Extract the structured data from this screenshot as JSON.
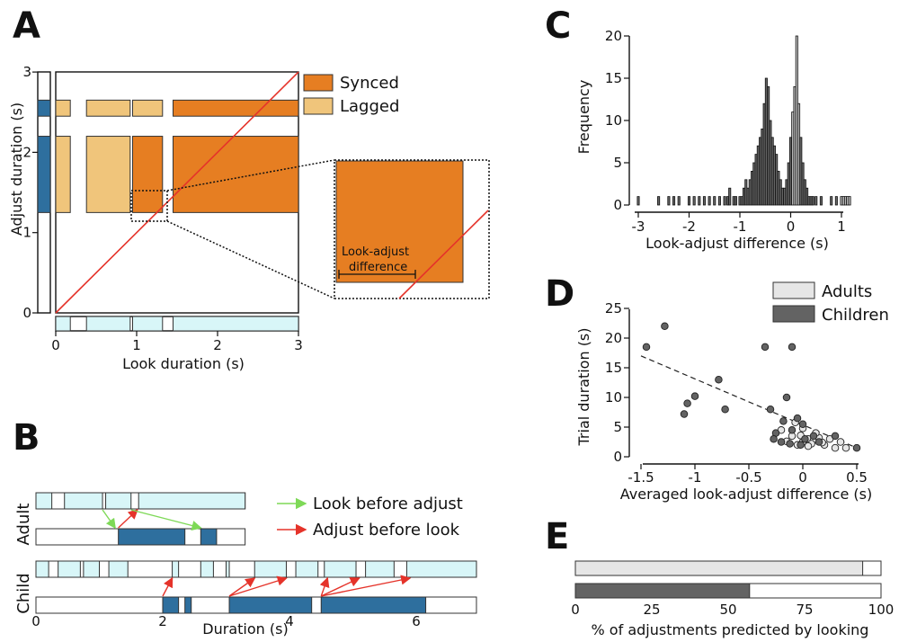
{
  "colors": {
    "synced": "#E67E22",
    "lagged": "#F0C57B",
    "look": "#D8F6F8",
    "adjust": "#2E6F9E",
    "diag": "#E5332A",
    "look_before_adjust": "#7ED957",
    "adjust_before_look": "#E5332A",
    "adults": "#E6E6E6",
    "children": "#636363"
  },
  "panels": {
    "A": {
      "label": "A"
    },
    "B": {
      "label": "B"
    },
    "C": {
      "label": "C"
    },
    "D": {
      "label": "D"
    },
    "E": {
      "label": "E"
    }
  },
  "chart_data": [
    {
      "id": "A",
      "type": "scatter",
      "xlabel": "Look duration (s)",
      "ylabel": "Adjust duration (s)",
      "xlim": [
        0,
        3
      ],
      "ylim": [
        0,
        3
      ],
      "xticks": [
        "0",
        "1",
        "2",
        "3"
      ],
      "yticks": [
        "0",
        "1",
        "2",
        "3"
      ],
      "legend": [
        {
          "key": "synced",
          "label": "Synced"
        },
        {
          "key": "lagged",
          "label": "Lagged"
        }
      ],
      "look_segments": [
        [
          0,
          0.18
        ],
        [
          0.38,
          0.92
        ],
        [
          0.95,
          1.32
        ],
        [
          1.45,
          3.0
        ]
      ],
      "adjust_segments": [
        [
          2.45,
          2.65
        ],
        [
          1.25,
          2.2
        ]
      ],
      "rectangles": [
        {
          "x": [
            0,
            0.18
          ],
          "y": [
            2.45,
            2.65
          ],
          "type": "lagged"
        },
        {
          "x": [
            0.38,
            0.92
          ],
          "y": [
            2.45,
            2.65
          ],
          "type": "lagged"
        },
        {
          "x": [
            0.95,
            1.32
          ],
          "y": [
            2.45,
            2.65
          ],
          "type": "lagged"
        },
        {
          "x": [
            1.45,
            3.0
          ],
          "y": [
            2.45,
            2.65
          ],
          "type": "synced"
        },
        {
          "x": [
            0,
            0.18
          ],
          "y": [
            1.25,
            2.2
          ],
          "type": "lagged"
        },
        {
          "x": [
            0.38,
            0.92
          ],
          "y": [
            1.25,
            2.2
          ],
          "type": "lagged"
        },
        {
          "x": [
            0.95,
            1.32
          ],
          "y": [
            1.25,
            2.2
          ],
          "type": "synced"
        },
        {
          "x": [
            1.45,
            3.0
          ],
          "y": [
            1.25,
            2.2
          ],
          "type": "synced"
        }
      ],
      "zoom_annotation": "Look-adjust difference"
    },
    {
      "id": "B",
      "type": "bar",
      "xlabel": "Duration (s)",
      "xlim": [
        0,
        7
      ],
      "xticks": [
        "0",
        "2",
        "4",
        "6"
      ],
      "row_labels": [
        "Adult",
        "Child"
      ],
      "legend": [
        {
          "key": "look_before_adjust",
          "label": "Look before adjust"
        },
        {
          "key": "adjust_before_look",
          "label": "Adjust before look"
        }
      ],
      "adult": {
        "end": 3.3,
        "look_segments": [
          [
            0.0,
            0.25
          ],
          [
            0.45,
            1.05
          ],
          [
            1.1,
            1.5
          ],
          [
            1.62,
            3.3
          ]
        ],
        "adjust_segments": [
          [
            1.3,
            2.35
          ],
          [
            2.6,
            2.85
          ]
        ],
        "arrows": [
          {
            "type": "look_before_adjust",
            "from": 1.05,
            "to": 1.25
          },
          {
            "type": "adjust_before_look",
            "from": 1.3,
            "to": 1.6
          },
          {
            "type": "look_before_adjust",
            "from": 1.5,
            "to": 2.6
          }
        ]
      },
      "child": {
        "end": 6.95,
        "look_segments": [
          [
            0.0,
            0.2
          ],
          [
            0.35,
            0.7
          ],
          [
            0.75,
            1.0
          ],
          [
            1.15,
            1.45
          ],
          [
            2.15,
            2.25
          ],
          [
            2.6,
            2.8
          ],
          [
            3.0,
            3.05
          ],
          [
            3.45,
            3.95
          ],
          [
            4.1,
            4.45
          ],
          [
            4.55,
            5.05
          ],
          [
            5.2,
            5.65
          ],
          [
            5.85,
            6.95
          ]
        ],
        "adjust_segments": [
          [
            2.0,
            2.25
          ],
          [
            2.35,
            2.45
          ],
          [
            3.05,
            4.35
          ],
          [
            4.5,
            6.15
          ]
        ],
        "arrows": [
          {
            "type": "adjust_before_look",
            "from": 2.0,
            "to": 2.15
          },
          {
            "type": "adjust_before_look",
            "from": 3.05,
            "to": 3.45
          },
          {
            "type": "adjust_before_look",
            "from": 3.05,
            "to": 3.95
          },
          {
            "type": "adjust_before_look",
            "from": 4.5,
            "to": 4.6
          },
          {
            "type": "adjust_before_look",
            "from": 4.5,
            "to": 5.1
          },
          {
            "type": "adjust_before_look",
            "from": 4.5,
            "to": 5.9
          }
        ]
      }
    },
    {
      "id": "C",
      "type": "bar",
      "xlabel": "Look-adjust difference (s)",
      "ylabel": "Frequency",
      "xlim": [
        -3,
        1.2
      ],
      "ylim": [
        0,
        20
      ],
      "xticks": [
        "-3",
        "-2",
        "-1",
        "0",
        "1"
      ],
      "yticks": [
        "0",
        "5",
        "10",
        "15",
        "20"
      ],
      "bin_width": 0.04,
      "bin_centers": [
        -3.0,
        -2.6,
        -2.4,
        -2.3,
        -2.2,
        -2.0,
        -1.9,
        -1.8,
        -1.7,
        -1.6,
        -1.5,
        -1.4,
        -1.3,
        -1.24,
        -1.2,
        -1.12,
        -1.08,
        -1.0,
        -0.96,
        -0.92,
        -0.88,
        -0.84,
        -0.8,
        -0.76,
        -0.72,
        -0.68,
        -0.64,
        -0.6,
        -0.56,
        -0.52,
        -0.48,
        -0.44,
        -0.4,
        -0.36,
        -0.32,
        -0.28,
        -0.24,
        -0.2,
        -0.16,
        -0.12,
        -0.08,
        -0.04,
        0.0,
        0.04,
        0.08,
        0.12,
        0.16,
        0.2,
        0.24,
        0.28,
        0.32,
        0.36,
        0.4,
        0.44,
        0.5,
        0.6,
        0.8,
        0.9,
        1.0,
        1.04,
        1.08,
        1.12,
        1.16
      ],
      "values": [
        1,
        1,
        1,
        1,
        1,
        1,
        1,
        1,
        1,
        1,
        1,
        1,
        1,
        1,
        2,
        1,
        1,
        1,
        1,
        2,
        3,
        2,
        3,
        4,
        5,
        6,
        7,
        8,
        9,
        12,
        15,
        14,
        10,
        8,
        7,
        6,
        4,
        3,
        2,
        2,
        3,
        5,
        8,
        11,
        14,
        20,
        12,
        8,
        5,
        3,
        2,
        1,
        1,
        1,
        1,
        1,
        1,
        1,
        1,
        1,
        1,
        1,
        1
      ]
    },
    {
      "id": "D",
      "type": "scatter",
      "xlabel": "Averaged look-adjust difference (s)",
      "ylabel": "Trial duration (s)",
      "xlim": [
        -1.5,
        0.55
      ],
      "ylim": [
        0,
        25
      ],
      "xticks": [
        "-1.5",
        "-1",
        "-0.5",
        "0",
        "0.5"
      ],
      "yticks": [
        "0",
        "5",
        "10",
        "15",
        "20",
        "25"
      ],
      "trend": [
        [
          -1.5,
          17.0
        ],
        [
          0.5,
          1.5
        ]
      ],
      "series": [
        {
          "name": "Adults",
          "color_key": "adults",
          "points": [
            [
              0.0,
              2.5
            ],
            [
              0.05,
              3.0
            ],
            [
              -0.05,
              2.0
            ],
            [
              0.1,
              2.8
            ],
            [
              0.15,
              3.2
            ],
            [
              -0.1,
              3.5
            ],
            [
              0.2,
              2.0
            ],
            [
              0.3,
              1.5
            ],
            [
              0.35,
              2.5
            ],
            [
              0.12,
              4.0
            ],
            [
              -0.02,
              3.6
            ],
            [
              0.08,
              2.2
            ],
            [
              -0.15,
              2.6
            ],
            [
              0.25,
              3.0
            ],
            [
              -0.2,
              4.5
            ],
            [
              0.0,
              4.8
            ],
            [
              0.18,
              2.4
            ],
            [
              -0.07,
              5.8
            ],
            [
              0.4,
              1.5
            ],
            [
              0.05,
              1.8
            ]
          ]
        },
        {
          "name": "Children",
          "color_key": "children",
          "points": [
            [
              -1.45,
              18.5
            ],
            [
              -1.28,
              22.0
            ],
            [
              -1.1,
              7.2
            ],
            [
              -1.07,
              9.0
            ],
            [
              -1.0,
              10.2
            ],
            [
              -0.78,
              13.0
            ],
            [
              -0.72,
              8.0
            ],
            [
              -0.35,
              18.5
            ],
            [
              -0.1,
              18.5
            ],
            [
              -0.25,
              4.0
            ],
            [
              -0.3,
              8.0
            ],
            [
              -0.2,
              2.5
            ],
            [
              -0.15,
              10.0
            ],
            [
              -0.05,
              6.5
            ],
            [
              0.0,
              5.5
            ],
            [
              0.1,
              3.5
            ],
            [
              -0.1,
              4.5
            ],
            [
              0.02,
              3.0
            ],
            [
              -0.18,
              6.0
            ],
            [
              0.3,
              3.5
            ],
            [
              0.5,
              1.5
            ],
            [
              -0.12,
              2.2
            ],
            [
              -0.27,
              3.0
            ],
            [
              -0.02,
              2.0
            ],
            [
              0.15,
              2.5
            ]
          ]
        }
      ],
      "legend": [
        {
          "key": "adults",
          "label": "Adults"
        },
        {
          "key": "children",
          "label": "Children"
        }
      ]
    },
    {
      "id": "E",
      "type": "bar",
      "xlabel": "% of adjustments predicted by looking",
      "xlim": [
        0,
        100
      ],
      "xticks": [
        "0",
        "25",
        "50",
        "75",
        "100"
      ],
      "series": [
        {
          "name": "Adults",
          "color_key": "adults",
          "value": 94
        },
        {
          "name": "Children",
          "color_key": "children",
          "value": 57
        }
      ]
    }
  ]
}
